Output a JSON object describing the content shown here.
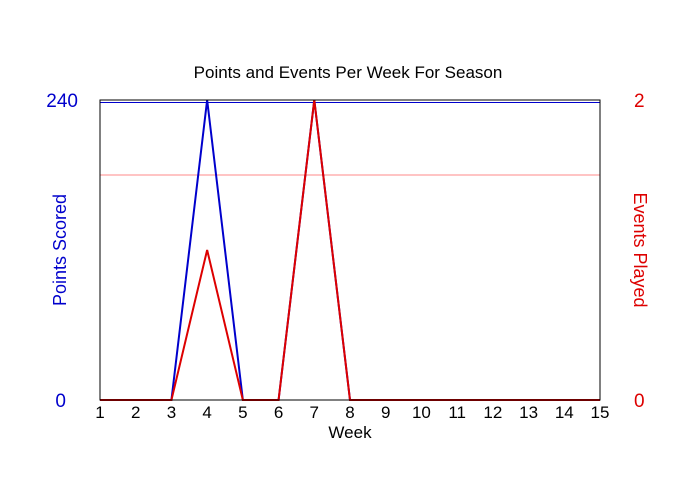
{
  "chart_data": {
    "type": "line",
    "title": "Points and Events Per Week For Season",
    "xlabel": "Week",
    "x": [
      1,
      2,
      3,
      4,
      5,
      6,
      7,
      8,
      9,
      10,
      11,
      12,
      13,
      14,
      15
    ],
    "xlim": [
      1,
      15
    ],
    "series": [
      {
        "name": "Points Scored",
        "axis": "left",
        "color": "#0000cc",
        "values": [
          0,
          0,
          0,
          240,
          0,
          0,
          240,
          0,
          0,
          0,
          0,
          0,
          0,
          0,
          0
        ]
      },
      {
        "name": "Events Played",
        "axis": "right",
        "color": "#dd0000",
        "values": [
          0,
          0,
          0,
          1,
          0,
          0,
          2,
          0,
          0,
          0,
          0,
          0,
          0,
          0,
          0
        ]
      }
    ],
    "y_left": {
      "label": "Points Scored",
      "ylim": [
        0,
        240
      ],
      "tick_labels": [
        "0",
        "240"
      ],
      "color": "#0000cc"
    },
    "y_right": {
      "label": "Events Played",
      "ylim": [
        0,
        2
      ],
      "tick_labels": [
        "0",
        "2"
      ],
      "color": "#dd0000"
    },
    "reference_lines": [
      {
        "axis": "left",
        "value": 238,
        "color": "#0000cc"
      },
      {
        "axis": "right",
        "value": 1.5,
        "color": "#ff8888"
      }
    ],
    "grid": false,
    "legend": "none"
  }
}
